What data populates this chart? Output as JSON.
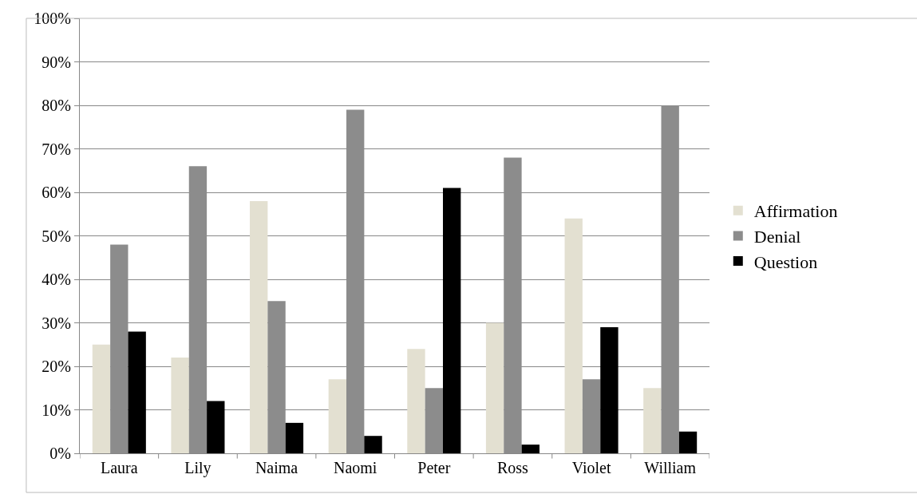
{
  "chart_data": {
    "type": "bar",
    "categories": [
      "Laura",
      "Lily",
      "Naima",
      "Naomi",
      "Peter",
      "Ross",
      "Violet",
      "William"
    ],
    "series": [
      {
        "name": "Affirmation",
        "color": "#e3e0d1",
        "values": [
          25,
          22,
          58,
          17,
          24,
          30,
          54,
          15
        ]
      },
      {
        "name": "Denial",
        "color": "#8c8c8c",
        "values": [
          48,
          66,
          35,
          79,
          15,
          68,
          17,
          80
        ]
      },
      {
        "name": "Question",
        "color": "#000000",
        "values": [
          28,
          12,
          7,
          4,
          61,
          2,
          29,
          5
        ]
      }
    ],
    "ylim": [
      0,
      100
    ],
    "yticks": [
      {
        "value": 0,
        "label": "0%"
      },
      {
        "value": 10,
        "label": "10%"
      },
      {
        "value": 20,
        "label": "20%"
      },
      {
        "value": 30,
        "label": "30%"
      },
      {
        "value": 40,
        "label": "40%"
      },
      {
        "value": 50,
        "label": "50%"
      },
      {
        "value": 60,
        "label": "60%"
      },
      {
        "value": 70,
        "label": "70%"
      },
      {
        "value": 80,
        "label": "80%"
      },
      {
        "value": 90,
        "label": "90%"
      },
      {
        "value": 100,
        "label": "100%"
      }
    ],
    "grid": "y",
    "legend": "right"
  }
}
